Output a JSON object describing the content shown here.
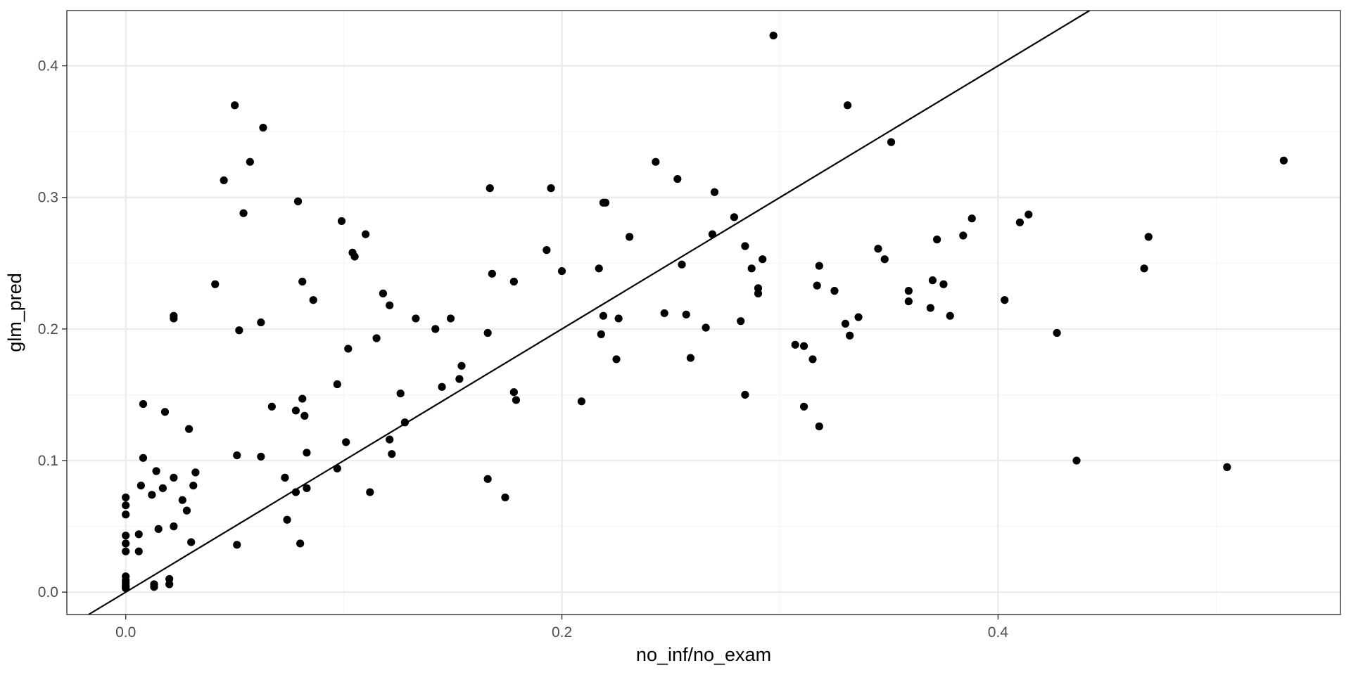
{
  "chart_data": {
    "type": "scatter",
    "title": "",
    "xlabel": "no_inf/no_exam",
    "ylabel": "glm_pred",
    "xlim": [
      -0.027,
      0.557
    ],
    "ylim": [
      -0.017,
      0.442
    ],
    "xticks": [
      0.0,
      0.2,
      0.4
    ],
    "xtick_labels": [
      "0.0",
      "0.2",
      "0.4"
    ],
    "xminor": [
      0.1,
      0.3,
      0.5
    ],
    "yticks": [
      0.0,
      0.1,
      0.2,
      0.3,
      0.4
    ],
    "ytick_labels": [
      "0.0",
      "0.1",
      "0.2",
      "0.3",
      "0.4"
    ],
    "yminor": [
      0.05,
      0.15,
      0.25,
      0.35
    ],
    "grid": true,
    "legend": "none",
    "reference_line": {
      "type": "identity",
      "slope": 1,
      "intercept": 0
    },
    "colors": {
      "points": "#000000",
      "line": "#000000",
      "grid_major": "#ebebeb",
      "grid_minor": "#f5f5f5",
      "panel_border": "#333333",
      "tick_text": "#4d4d4d",
      "axis_title": "#000000"
    },
    "series": [
      {
        "points": [
          [
            0.0,
            0.072
          ],
          [
            0.0,
            0.066
          ],
          [
            0.0,
            0.059
          ],
          [
            0.0,
            0.043
          ],
          [
            0.0,
            0.037
          ],
          [
            0.0,
            0.031
          ],
          [
            0.0,
            0.012
          ],
          [
            0.0,
            0.009
          ],
          [
            0.0,
            0.007
          ],
          [
            0.0,
            0.005
          ],
          [
            0.0,
            0.004
          ],
          [
            0.0,
            0.003
          ],
          [
            0.006,
            0.044
          ],
          [
            0.006,
            0.031
          ],
          [
            0.007,
            0.081
          ],
          [
            0.008,
            0.102
          ],
          [
            0.008,
            0.143
          ],
          [
            0.012,
            0.074
          ],
          [
            0.013,
            0.006
          ],
          [
            0.013,
            0.004
          ],
          [
            0.014,
            0.092
          ],
          [
            0.015,
            0.048
          ],
          [
            0.017,
            0.079
          ],
          [
            0.018,
            0.137
          ],
          [
            0.02,
            0.01
          ],
          [
            0.02,
            0.006
          ],
          [
            0.022,
            0.05
          ],
          [
            0.022,
            0.087
          ],
          [
            0.022,
            0.208
          ],
          [
            0.022,
            0.21
          ],
          [
            0.026,
            0.07
          ],
          [
            0.028,
            0.062
          ],
          [
            0.029,
            0.124
          ],
          [
            0.03,
            0.038
          ],
          [
            0.031,
            0.081
          ],
          [
            0.032,
            0.091
          ],
          [
            0.041,
            0.234
          ],
          [
            0.045,
            0.313
          ],
          [
            0.05,
            0.37
          ],
          [
            0.051,
            0.104
          ],
          [
            0.051,
            0.036
          ],
          [
            0.052,
            0.199
          ],
          [
            0.054,
            0.288
          ],
          [
            0.057,
            0.327
          ],
          [
            0.062,
            0.103
          ],
          [
            0.062,
            0.205
          ],
          [
            0.063,
            0.353
          ],
          [
            0.067,
            0.141
          ],
          [
            0.073,
            0.087
          ],
          [
            0.074,
            0.055
          ],
          [
            0.078,
            0.076
          ],
          [
            0.078,
            0.138
          ],
          [
            0.079,
            0.297
          ],
          [
            0.08,
            0.037
          ],
          [
            0.081,
            0.147
          ],
          [
            0.081,
            0.236
          ],
          [
            0.082,
            0.134
          ],
          [
            0.083,
            0.106
          ],
          [
            0.083,
            0.079
          ],
          [
            0.086,
            0.222
          ],
          [
            0.097,
            0.094
          ],
          [
            0.097,
            0.158
          ],
          [
            0.099,
            0.282
          ],
          [
            0.101,
            0.114
          ],
          [
            0.102,
            0.185
          ],
          [
            0.104,
            0.258
          ],
          [
            0.105,
            0.255
          ],
          [
            0.11,
            0.272
          ],
          [
            0.112,
            0.076
          ],
          [
            0.115,
            0.193
          ],
          [
            0.118,
            0.227
          ],
          [
            0.121,
            0.116
          ],
          [
            0.121,
            0.218
          ],
          [
            0.122,
            0.105
          ],
          [
            0.126,
            0.151
          ],
          [
            0.128,
            0.129
          ],
          [
            0.133,
            0.208
          ],
          [
            0.142,
            0.2
          ],
          [
            0.145,
            0.156
          ],
          [
            0.149,
            0.208
          ],
          [
            0.153,
            0.162
          ],
          [
            0.154,
            0.172
          ],
          [
            0.166,
            0.197
          ],
          [
            0.166,
            0.086
          ],
          [
            0.167,
            0.307
          ],
          [
            0.168,
            0.242
          ],
          [
            0.174,
            0.072
          ],
          [
            0.178,
            0.236
          ],
          [
            0.178,
            0.152
          ],
          [
            0.179,
            0.146
          ],
          [
            0.193,
            0.26
          ],
          [
            0.195,
            0.307
          ],
          [
            0.2,
            0.244
          ],
          [
            0.209,
            0.145
          ],
          [
            0.217,
            0.246
          ],
          [
            0.218,
            0.196
          ],
          [
            0.219,
            0.21
          ],
          [
            0.219,
            0.296
          ],
          [
            0.22,
            0.296
          ],
          [
            0.225,
            0.177
          ],
          [
            0.226,
            0.208
          ],
          [
            0.231,
            0.27
          ],
          [
            0.243,
            0.327
          ],
          [
            0.247,
            0.212
          ],
          [
            0.253,
            0.314
          ],
          [
            0.255,
            0.249
          ],
          [
            0.257,
            0.211
          ],
          [
            0.259,
            0.178
          ],
          [
            0.266,
            0.201
          ],
          [
            0.269,
            0.272
          ],
          [
            0.27,
            0.304
          ],
          [
            0.279,
            0.285
          ],
          [
            0.282,
            0.206
          ],
          [
            0.284,
            0.263
          ],
          [
            0.284,
            0.15
          ],
          [
            0.287,
            0.246
          ],
          [
            0.29,
            0.231
          ],
          [
            0.29,
            0.227
          ],
          [
            0.292,
            0.253
          ],
          [
            0.297,
            0.423
          ],
          [
            0.307,
            0.188
          ],
          [
            0.311,
            0.187
          ],
          [
            0.311,
            0.141
          ],
          [
            0.315,
            0.177
          ],
          [
            0.317,
            0.233
          ],
          [
            0.318,
            0.248
          ],
          [
            0.318,
            0.126
          ],
          [
            0.325,
            0.229
          ],
          [
            0.33,
            0.204
          ],
          [
            0.331,
            0.37
          ],
          [
            0.332,
            0.195
          ],
          [
            0.336,
            0.209
          ],
          [
            0.345,
            0.261
          ],
          [
            0.348,
            0.253
          ],
          [
            0.351,
            0.342
          ],
          [
            0.359,
            0.229
          ],
          [
            0.359,
            0.221
          ],
          [
            0.369,
            0.216
          ],
          [
            0.37,
            0.237
          ],
          [
            0.372,
            0.268
          ],
          [
            0.375,
            0.234
          ],
          [
            0.378,
            0.21
          ],
          [
            0.384,
            0.271
          ],
          [
            0.388,
            0.284
          ],
          [
            0.403,
            0.222
          ],
          [
            0.41,
            0.281
          ],
          [
            0.414,
            0.287
          ],
          [
            0.427,
            0.197
          ],
          [
            0.436,
            0.1
          ],
          [
            0.467,
            0.246
          ],
          [
            0.469,
            0.27
          ],
          [
            0.505,
            0.095
          ],
          [
            0.531,
            0.328
          ]
        ]
      }
    ]
  }
}
